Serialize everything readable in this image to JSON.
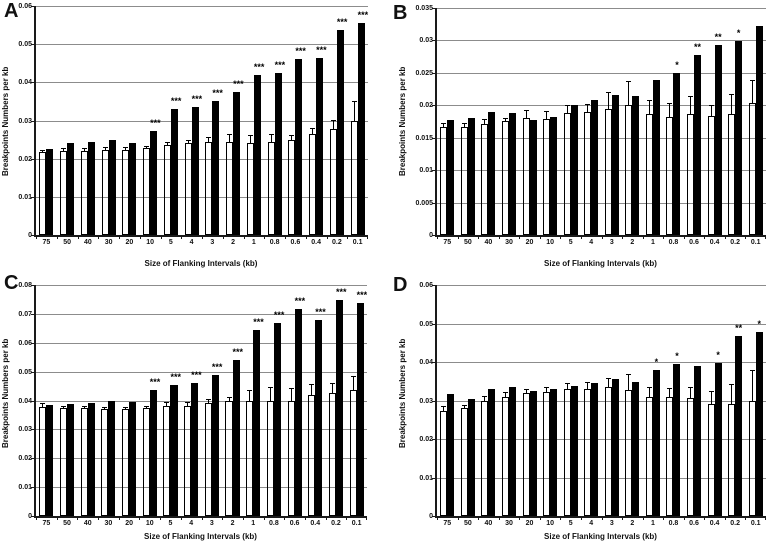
{
  "figure": {
    "background": "#ffffff",
    "axis_color": "#1a1a1a",
    "gridline_color": "#8c8c8c",
    "bar_filled_color": "#000000",
    "bar_open_fill": "transparent",
    "bar_open_border": "#000000",
    "error_bar_color": "#000000"
  },
  "chart_data": [
    {
      "panel": "A",
      "type": "bar",
      "title": "",
      "xlabel": "Size of Flanking Intervals (kb)",
      "ylabel": "Breakpoints Numbers per kb",
      "ylim": [
        0,
        0.06
      ],
      "ytick_labels": [
        "0",
        "0.01",
        "0.02",
        "0.03",
        "0.04",
        "0.05",
        "0.06"
      ],
      "grid": true,
      "legend": "none",
      "categories": [
        "75",
        "50",
        "40",
        "30",
        "20",
        "10",
        "5",
        "4",
        "3",
        "2",
        "1",
        "0.8",
        "0.6",
        "0.4",
        "0.2",
        "0.1"
      ],
      "series": [
        {
          "name": "open bars (with error bars)",
          "values": [
            0.0218,
            0.022,
            0.022,
            0.0222,
            0.0222,
            0.0228,
            0.0235,
            0.024,
            0.0245,
            0.0245,
            0.0242,
            0.0245,
            0.025,
            0.0265,
            0.0277,
            0.03
          ],
          "errors": [
            0.0005,
            0.0008,
            0.0008,
            0.0008,
            0.0008,
            0.0005,
            0.0008,
            0.001,
            0.0012,
            0.002,
            0.002,
            0.002,
            0.0012,
            0.0015,
            0.0025,
            0.005
          ]
        },
        {
          "name": "filled black bars",
          "values": [
            0.0225,
            0.0241,
            0.0243,
            0.025,
            0.0241,
            0.0273,
            0.033,
            0.0335,
            0.035,
            0.0376,
            0.0419,
            0.0425,
            0.0462,
            0.0463,
            0.0537,
            0.0555
          ]
        }
      ],
      "significance": [
        "",
        "",
        "",
        "",
        "",
        "***",
        "***",
        "***",
        "***",
        "***",
        "***",
        "***",
        "***",
        "***",
        "***",
        "***"
      ]
    },
    {
      "panel": "B",
      "type": "bar",
      "title": "",
      "xlabel": "Size of Flanking Intervals (kb)",
      "ylabel": "Breakpoints Numbers per kb",
      "ylim": [
        0,
        0.035
      ],
      "ytick_labels": [
        "0",
        "0.005",
        "0.01",
        "0.015",
        "0.02",
        "0.025",
        "0.03",
        "0.035"
      ],
      "grid": true,
      "legend": "none",
      "categories": [
        "75",
        "50",
        "40",
        "30",
        "20",
        "10",
        "5",
        "4",
        "3",
        "2",
        "1",
        "0.8",
        "0.6",
        "0.4",
        "0.2",
        "0.1"
      ],
      "series": [
        {
          "name": "open bars (with error bars)",
          "values": [
            0.0167,
            0.0166,
            0.0171,
            0.0176,
            0.0181,
            0.0179,
            0.0188,
            0.0189,
            0.0194,
            0.02,
            0.0186,
            0.0182,
            0.0187,
            0.0183,
            0.0186,
            0.0203
          ],
          "errors": [
            0.0005,
            0.0006,
            0.0008,
            0.0005,
            0.0012,
            0.0012,
            0.0013,
            0.0013,
            0.0026,
            0.0037,
            0.0022,
            0.0022,
            0.0027,
            0.0018,
            0.0032,
            0.0036
          ]
        },
        {
          "name": "filled black bars",
          "values": [
            0.0177,
            0.018,
            0.0189,
            0.0188,
            0.0177,
            0.0182,
            0.0201,
            0.0208,
            0.0216,
            0.0215,
            0.0239,
            0.025,
            0.0277,
            0.0293,
            0.0299,
            0.0323
          ]
        }
      ],
      "significance": [
        "",
        "",
        "",
        "",
        "",
        "",
        "",
        "",
        "",
        "",
        "",
        "*",
        "**",
        "**",
        "*",
        ""
      ]
    },
    {
      "panel": "C",
      "type": "bar",
      "title": "",
      "xlabel": "Size of Flanking Intervals (kb)",
      "ylabel": "Breakpoints Numbers per kb",
      "ylim": [
        0,
        0.08
      ],
      "ytick_labels": [
        "0",
        "0.01",
        "0.02",
        "0.03",
        "0.04",
        "0.05",
        "0.06",
        "0.07",
        "0.08"
      ],
      "grid": true,
      "legend": "none",
      "categories": [
        "75",
        "50",
        "40",
        "30",
        "20",
        "10",
        "5",
        "4",
        "3",
        "2",
        "1",
        "0.8",
        "0.6",
        "0.4",
        "0.2",
        "0.1"
      ],
      "series": [
        {
          "name": "open bars (with error bars)",
          "values": [
            0.0378,
            0.0373,
            0.0373,
            0.0371,
            0.037,
            0.0374,
            0.0381,
            0.0381,
            0.039,
            0.0397,
            0.04,
            0.0398,
            0.04,
            0.042,
            0.0425,
            0.0438
          ],
          "errors": [
            0.0012,
            0.0008,
            0.0008,
            0.0008,
            0.0008,
            0.0008,
            0.0013,
            0.0013,
            0.0015,
            0.0015,
            0.0035,
            0.005,
            0.0043,
            0.0038,
            0.0035,
            0.0048
          ]
        },
        {
          "name": "filled black bars",
          "values": [
            0.0384,
            0.0389,
            0.0392,
            0.0397,
            0.0394,
            0.0438,
            0.0453,
            0.0461,
            0.0488,
            0.054,
            0.0645,
            0.0668,
            0.0718,
            0.0678,
            0.0748,
            0.0738
          ]
        }
      ],
      "significance": [
        "",
        "",
        "",
        "",
        "",
        "***",
        "***",
        "***",
        "***",
        "***",
        "***",
        "***",
        "***",
        "***",
        "***",
        "***"
      ]
    },
    {
      "panel": "D",
      "type": "bar",
      "title": "",
      "xlabel": "Size of Flanking Intervals (kb)",
      "ylabel": "Breakpoints Numbers per kb",
      "ylim": [
        0,
        0.06
      ],
      "ytick_labels": [
        "0",
        "0.01",
        "0.02",
        "0.03",
        "0.04",
        "0.05",
        "0.06"
      ],
      "grid": true,
      "legend": "none",
      "categories": [
        "75",
        "50",
        "40",
        "30",
        "20",
        "10",
        "5",
        "4",
        "3",
        "2",
        "1",
        "0.8",
        "0.6",
        "0.4",
        "0.2",
        "0.1"
      ],
      "series": [
        {
          "name": "open bars (with error bars)",
          "values": [
            0.0272,
            0.028,
            0.0299,
            0.031,
            0.0319,
            0.0323,
            0.033,
            0.0331,
            0.0336,
            0.0328,
            0.031,
            0.0308,
            0.0307,
            0.029,
            0.0292,
            0.03
          ],
          "errors": [
            0.0015,
            0.0008,
            0.0012,
            0.0012,
            0.0012,
            0.0012,
            0.0015,
            0.0018,
            0.0023,
            0.004,
            0.0025,
            0.0025,
            0.0028,
            0.0035,
            0.0052,
            0.0078
          ]
        },
        {
          "name": "filled black bars",
          "values": [
            0.0316,
            0.0304,
            0.0329,
            0.0334,
            0.0326,
            0.033,
            0.0338,
            0.0346,
            0.0355,
            0.0349,
            0.0378,
            0.0396,
            0.039,
            0.0397,
            0.0467,
            0.0477
          ]
        }
      ],
      "significance": [
        "",
        "",
        "",
        "",
        "",
        "",
        "",
        "",
        "",
        "",
        "*",
        "*",
        "",
        "*",
        "**",
        "*"
      ]
    }
  ]
}
